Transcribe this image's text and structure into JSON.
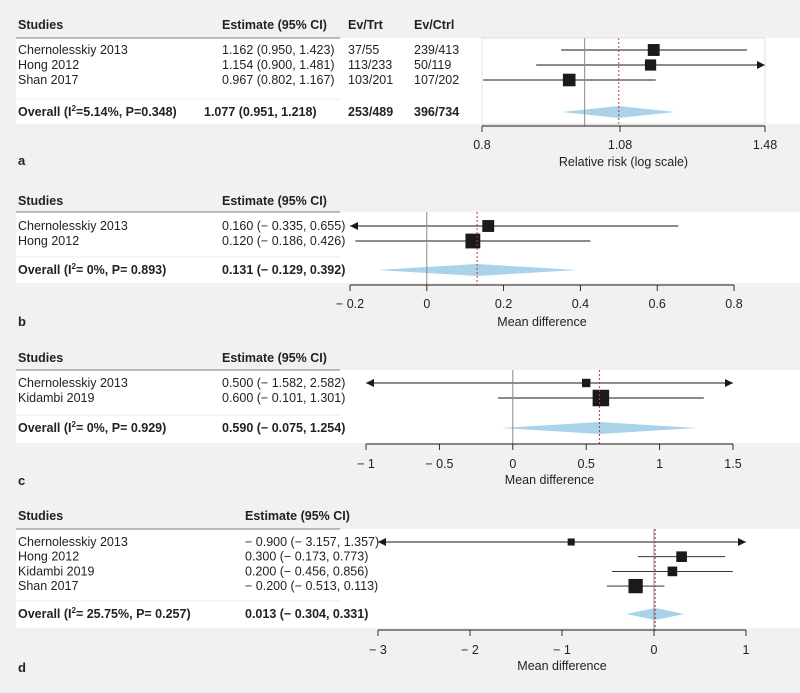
{
  "colors": {
    "background": "#f1f1f1",
    "band": "#ffffff",
    "row_rule": "#555555",
    "marker": "#1a1a1a",
    "null_line": "#8a8a8a",
    "overall_line": "#c0392b",
    "diamond": "#a9d3ea",
    "text": "#222222"
  },
  "chart_data": [
    {
      "panel": "a",
      "type": "forest",
      "scale": "log",
      "xlabel": "Relative risk (log scale)",
      "xlim": [
        0.8,
        1.48
      ],
      "ticks": [
        0.8,
        1.08,
        1.48
      ],
      "tick_labels": [
        "0.8",
        "1.08",
        "1.48"
      ],
      "null_value": 1,
      "arrows_left": [],
      "columns": [
        "Studies",
        "Estimate (95% CI)",
        "Ev/Trt",
        "Ev/Ctrl"
      ],
      "studies": [
        {
          "name": "Chernolesskiy 2013",
          "estimate_text": "1.162 (0.950, 1.423)",
          "est": 1.162,
          "lo": 0.95,
          "hi": 1.423,
          "weight": 0.33,
          "extra": [
            "37/55",
            "239/413"
          ]
        },
        {
          "name": "Hong 2012",
          "estimate_text": "1.154 (0.900, 1.481)",
          "est": 1.154,
          "lo": 0.9,
          "hi": 1.481,
          "weight": 0.27,
          "extra": [
            "113/233",
            "50/119"
          ]
        },
        {
          "name": "Shan 2017",
          "estimate_text": "0.967 (0.802, 1.167)",
          "est": 0.967,
          "lo": 0.802,
          "hi": 1.167,
          "weight": 0.4,
          "extra": [
            "103/201",
            "107/202"
          ]
        }
      ],
      "overall": {
        "label_prefix": "Overall (I",
        "label_suffix": "=5.14%, P=0.348)",
        "estimate_text": "1.077 (0.951, 1.218)",
        "est": 1.077,
        "lo": 0.951,
        "hi": 1.218,
        "extra": [
          "253/489",
          "396/734"
        ]
      }
    },
    {
      "panel": "b",
      "type": "forest",
      "scale": "linear",
      "xlabel": "Mean difference",
      "xlim": [
        -0.2,
        0.8
      ],
      "ticks": [
        -0.2,
        0,
        0.2,
        0.4,
        0.6,
        0.8
      ],
      "tick_labels": [
        "− 0.2",
        "0",
        "0.2",
        "0.4",
        "0.6",
        "0.8"
      ],
      "null_value": 0,
      "columns": [
        "Studies",
        "Estimate (95% CI)"
      ],
      "studies": [
        {
          "name": "Chernolesskiy 2013",
          "estimate_text": "0.160 (− 0.335, 0.655)",
          "est": 0.16,
          "lo": -0.335,
          "hi": 0.655,
          "weight": 0.33,
          "extra": []
        },
        {
          "name": "Hong 2012",
          "estimate_text": "0.120 (− 0.186, 0.426)",
          "est": 0.12,
          "lo": -0.186,
          "hi": 0.426,
          "weight": 0.67,
          "extra": []
        }
      ],
      "overall": {
        "label_prefix": "Overall (I",
        "label_suffix": "= 0%, P= 0.893)",
        "estimate_text": "0.131 (− 0.129, 0.392)",
        "est": 0.131,
        "lo": -0.129,
        "hi": 0.392,
        "extra": []
      }
    },
    {
      "panel": "c",
      "type": "forest",
      "scale": "linear",
      "xlabel": "Mean difference",
      "xlim": [
        -1,
        1.5
      ],
      "ticks": [
        -1,
        -0.5,
        0,
        0.5,
        1,
        1.5
      ],
      "tick_labels": [
        "− 1",
        "− 0.5",
        "0",
        "0.5",
        "1",
        "1.5"
      ],
      "null_value": 0,
      "columns": [
        "Studies",
        "Estimate (95% CI)"
      ],
      "studies": [
        {
          "name": "Chernolesskiy 2013",
          "estimate_text": "0.500 (− 1.582, 2.582)",
          "est": 0.5,
          "lo": -1.582,
          "hi": 2.582,
          "weight": 0.08,
          "extra": []
        },
        {
          "name": "Kidambi 2019",
          "estimate_text": "0.600 (− 0.101, 1.301)",
          "est": 0.6,
          "lo": -0.101,
          "hi": 1.301,
          "weight": 0.92,
          "extra": []
        }
      ],
      "overall": {
        "label_prefix": "Overall (I",
        "label_suffix": "= 0%, P= 0.929)",
        "estimate_text": "0.590 (− 0.075, 1.254)",
        "est": 0.59,
        "lo": -0.075,
        "hi": 1.254,
        "extra": []
      }
    },
    {
      "panel": "d",
      "type": "forest",
      "scale": "linear",
      "xlabel": "Mean difference",
      "xlim": [
        -3,
        1
      ],
      "ticks": [
        -3,
        -2,
        -1,
        0,
        1
      ],
      "tick_labels": [
        "− 3",
        "− 2",
        "− 1",
        "0",
        "1"
      ],
      "null_value": 0,
      "columns": [
        "Studies",
        "Estimate (95% CI)"
      ],
      "studies": [
        {
          "name": "Chernolesskiy 2013",
          "estimate_text": "− 0.900 (− 3.157, 1.357)",
          "est": -0.9,
          "lo": -3.157,
          "hi": 1.357,
          "weight": 0.03,
          "extra": []
        },
        {
          "name": "Hong 2012",
          "estimate_text": "0.300 (− 0.173, 0.773)",
          "est": 0.3,
          "lo": -0.173,
          "hi": 0.773,
          "weight": 0.22,
          "extra": []
        },
        {
          "name": "Kidambi 2019",
          "estimate_text": "0.200 (− 0.456, 0.856)",
          "est": 0.2,
          "lo": -0.456,
          "hi": 0.856,
          "weight": 0.15,
          "extra": []
        },
        {
          "name": "Shan 2017",
          "estimate_text": "− 0.200 (− 0.513, 0.113)",
          "est": -0.2,
          "lo": -0.513,
          "hi": 0.113,
          "weight": 0.6,
          "extra": []
        }
      ],
      "overall": {
        "label_prefix": "Overall (I",
        "label_suffix": "= 25.75%, P= 0.257)",
        "estimate_text": "0.013 (− 0.304, 0.331)",
        "est": 0.013,
        "lo": -0.304,
        "hi": 0.331,
        "extra": []
      }
    }
  ]
}
